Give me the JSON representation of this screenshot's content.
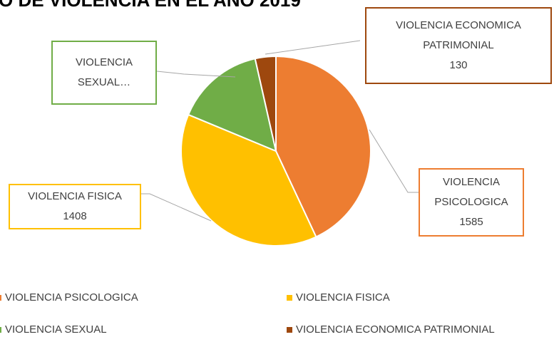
{
  "chart_data": {
    "type": "pie",
    "title": "O DE VIOLENCIA EN EL AÑO 2019",
    "categories": [
      "VIOLENCIA PSICOLOGICA",
      "VIOLENCIA FISICA",
      "VIOLENCIA SEXUAL",
      "VIOLENCIA ECONOMICA PATRIMONIAL"
    ],
    "values": [
      1585,
      1408,
      560,
      130
    ],
    "colors": [
      "#ED7D31",
      "#FFC000",
      "#70AD47",
      "#9E480E"
    ],
    "callout_labels": [
      "VIOLENCIA PSICOLOGICA",
      "VIOLENCIA FISICA",
      "VIOLENCIA SEXUAL…",
      "VIOLENCIA ECONOMICA PATRIMONIAL"
    ],
    "value_labels": [
      "1585",
      "1408",
      null,
      "130"
    ],
    "legend": "bottom"
  }
}
